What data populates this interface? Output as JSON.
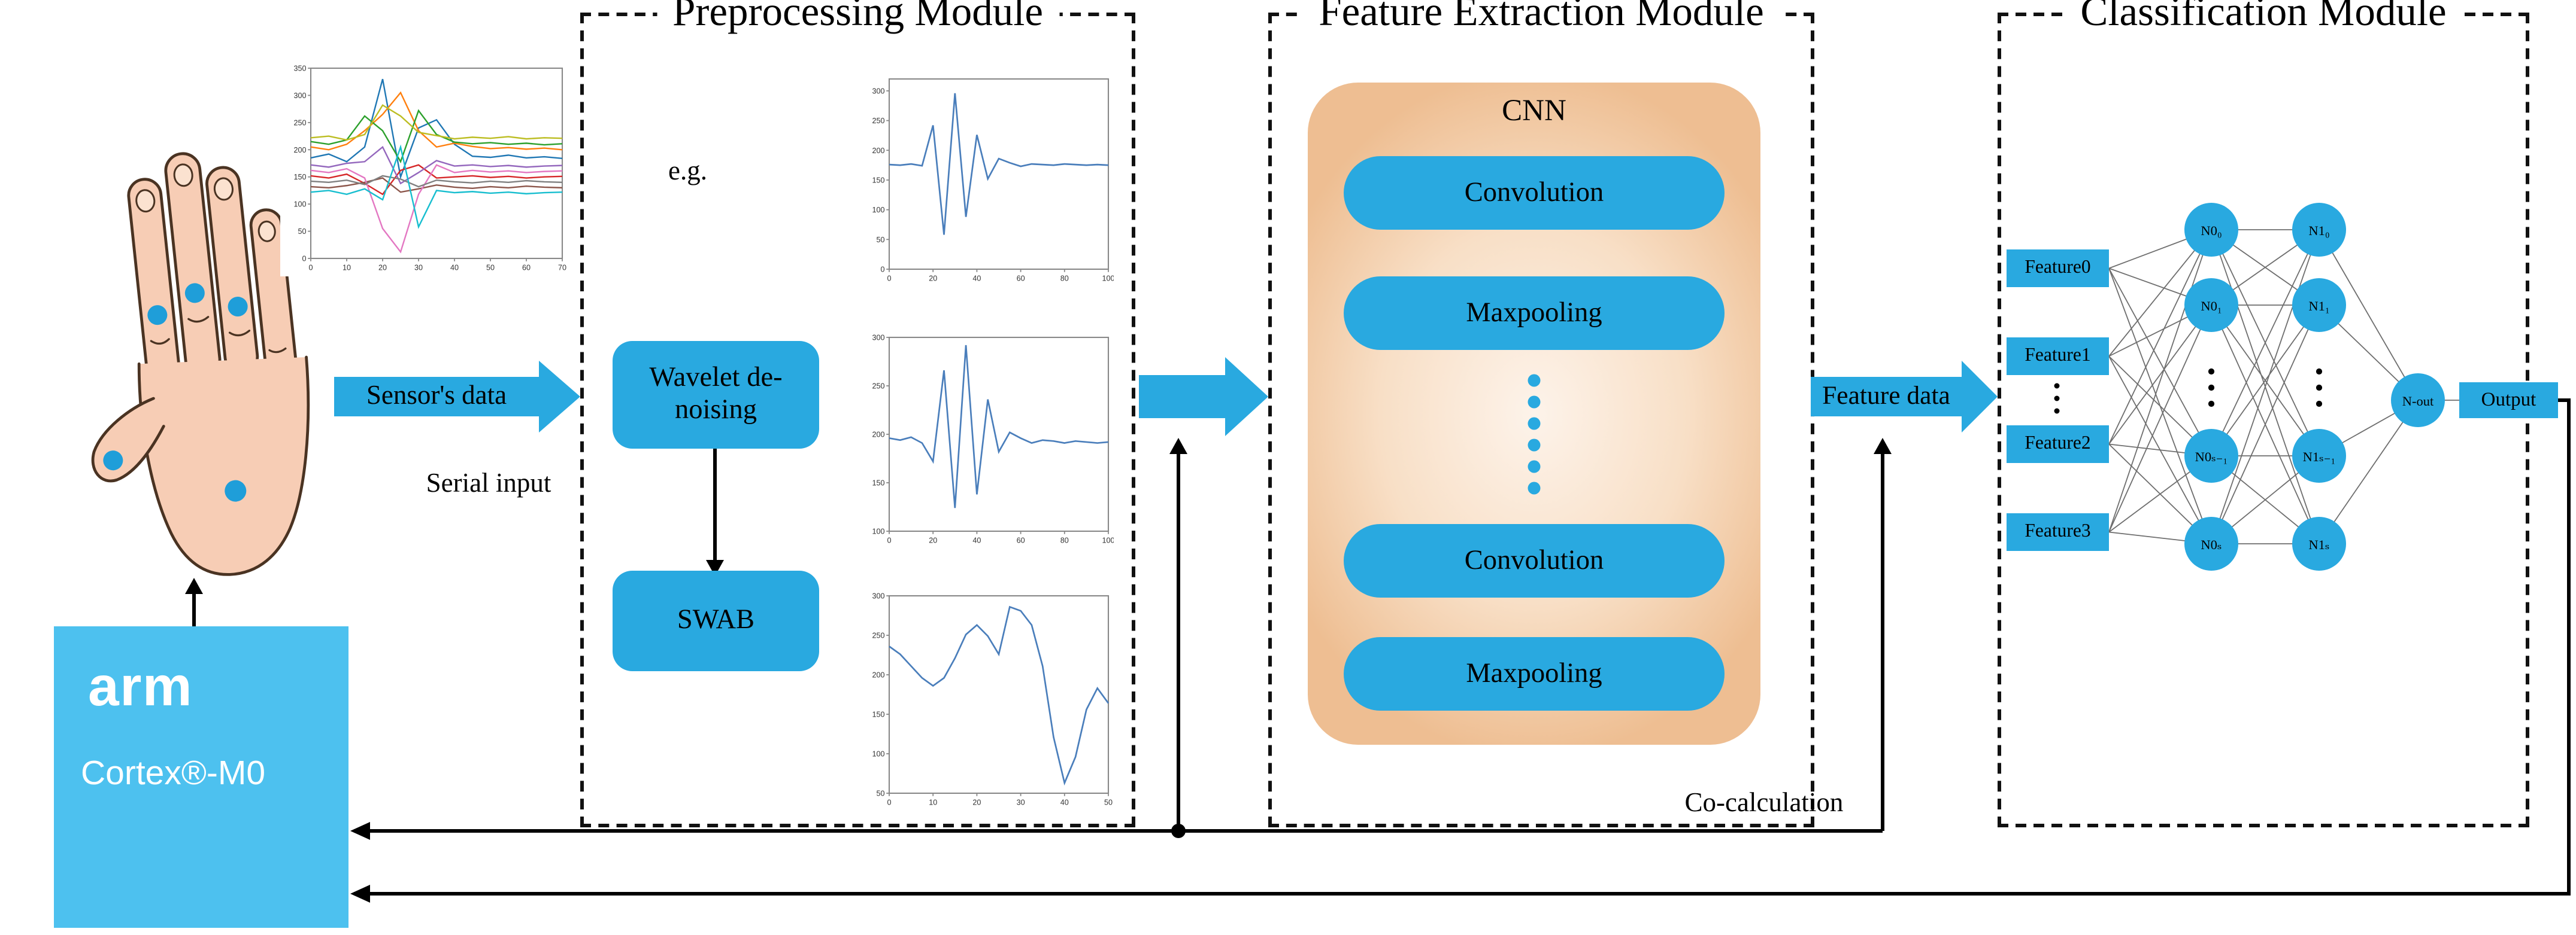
{
  "modules": {
    "preprocessing": {
      "title": "Preprocessing Module",
      "eg_label": "e.g.",
      "wavelet": "Wavelet de-noising",
      "swab": "SWAB"
    },
    "feature_extraction": {
      "title": "Feature Extraction Module",
      "cnn_title": "CNN",
      "layers": [
        "Convolution",
        "Maxpooling",
        "Convolution",
        "Maxpooling"
      ]
    },
    "classification": {
      "title": "Classification Module",
      "inputs": [
        "Feature0",
        "Feature1",
        "Feature2",
        "Feature3"
      ],
      "hidden1": [
        "N0₀",
        "N0₁",
        "N0ₛ₋₁",
        "N0ₛ"
      ],
      "hidden2": [
        "N1₀",
        "N1₁",
        "N1ₛ₋₁",
        "N1ₛ"
      ],
      "output_node": "N-out",
      "output_label": "Output"
    }
  },
  "flow_labels": {
    "sensors_data": "Sensor's data",
    "serial_input": "Serial input",
    "feature_data": "Feature data",
    "co_calculation": "Co-calculation"
  },
  "mcu": {
    "brand": "arm",
    "model": "Cortex®-M0"
  },
  "colors": {
    "accent_blue": "#29A9E0",
    "mcu_blue": "#4DC1EF",
    "panel_orange": "#EEBE92"
  },
  "chart_data": [
    {
      "id": "raw",
      "type": "line",
      "title": "",
      "xlim": [
        0,
        70
      ],
      "ylim": [
        0,
        350
      ],
      "xticks": [
        0,
        10,
        20,
        30,
        40,
        50,
        60,
        70
      ],
      "yticks": [
        0,
        50,
        100,
        150,
        200,
        250,
        300,
        350
      ],
      "x": [
        0,
        5,
        10,
        15,
        20,
        25,
        30,
        35,
        40,
        45,
        50,
        55,
        60,
        65,
        70
      ],
      "series": [
        {
          "color": "#1f77b4",
          "values": [
            185,
            192,
            178,
            205,
            330,
            150,
            240,
            255,
            210,
            188,
            186,
            190,
            185,
            187,
            184
          ]
        },
        {
          "color": "#ff7f0e",
          "values": [
            205,
            200,
            210,
            235,
            265,
            305,
            235,
            205,
            212,
            206,
            202,
            204,
            201,
            203,
            200
          ]
        },
        {
          "color": "#2ca02c",
          "values": [
            215,
            210,
            218,
            262,
            235,
            178,
            272,
            228,
            214,
            211,
            213,
            210,
            212,
            209,
            211
          ]
        },
        {
          "color": "#d62728",
          "values": [
            152,
            148,
            155,
            138,
            118,
            162,
            172,
            148,
            150,
            152,
            149,
            151,
            148,
            150,
            151
          ]
        },
        {
          "color": "#9467bd",
          "values": [
            172,
            168,
            175,
            178,
            205,
            138,
            158,
            180,
            170,
            172,
            169,
            171,
            168,
            170,
            171
          ]
        },
        {
          "color": "#8c564b",
          "values": [
            132,
            130,
            134,
            140,
            148,
            122,
            128,
            135,
            131,
            129,
            132,
            130,
            133,
            131,
            130
          ]
        },
        {
          "color": "#e377c2",
          "values": [
            162,
            158,
            165,
            148,
            55,
            12,
            118,
            172,
            158,
            162,
            159,
            161,
            158,
            160,
            161
          ]
        },
        {
          "color": "#7f7f7f",
          "values": [
            142,
            140,
            144,
            136,
            152,
            146,
            132,
            144,
            141,
            139,
            142,
            140,
            143,
            141,
            140
          ]
        },
        {
          "color": "#bcbd22",
          "values": [
            222,
            225,
            218,
            228,
            282,
            262,
            232,
            226,
            220,
            223,
            221,
            224,
            220,
            222,
            221
          ]
        },
        {
          "color": "#17becf",
          "values": [
            122,
            125,
            118,
            128,
            108,
            205,
            58,
            125,
            121,
            123,
            120,
            122,
            119,
            121,
            122
          ]
        }
      ]
    },
    {
      "id": "denoised1",
      "type": "line",
      "xlim": [
        0,
        100
      ],
      "ylim": [
        0,
        320
      ],
      "xticks": [
        0,
        20,
        40,
        60,
        80,
        100
      ],
      "yticks": [
        0,
        50,
        100,
        150,
        200,
        250,
        300
      ],
      "x": [
        0,
        5,
        10,
        15,
        20,
        25,
        30,
        35,
        40,
        45,
        50,
        55,
        60,
        65,
        70,
        75,
        80,
        85,
        90,
        95,
        100
      ],
      "series": [
        {
          "color": "#4a7ebb",
          "values": [
            176,
            175,
            177,
            174,
            242,
            58,
            296,
            88,
            226,
            152,
            186,
            179,
            173,
            177,
            176,
            175,
            177,
            176,
            175,
            176,
            175
          ]
        }
      ]
    },
    {
      "id": "denoised2",
      "type": "line",
      "xlim": [
        0,
        100
      ],
      "ylim": [
        100,
        300
      ],
      "xticks": [
        0,
        20,
        40,
        60,
        80,
        100
      ],
      "yticks": [
        100,
        150,
        200,
        250,
        300
      ],
      "x": [
        0,
        5,
        10,
        15,
        20,
        25,
        30,
        35,
        40,
        45,
        50,
        55,
        60,
        65,
        70,
        75,
        80,
        85,
        90,
        95,
        100
      ],
      "series": [
        {
          "color": "#4a7ebb",
          "values": [
            196,
            194,
            197,
            191,
            172,
            266,
            124,
            292,
            138,
            236,
            182,
            202,
            196,
            191,
            194,
            193,
            191,
            193,
            192,
            191,
            192
          ]
        }
      ]
    },
    {
      "id": "swab",
      "type": "line",
      "xlim": [
        0,
        50
      ],
      "ylim": [
        50,
        300
      ],
      "xticks": [
        0,
        10,
        20,
        30,
        40,
        50
      ],
      "yticks": [
        50,
        100,
        150,
        200,
        250,
        300
      ],
      "x": [
        0,
        2.5,
        5,
        7.5,
        10,
        12.5,
        15,
        17.5,
        20,
        22.5,
        25,
        27.5,
        30,
        32.5,
        35,
        37.5,
        40,
        42.5,
        45,
        47.5,
        50
      ],
      "series": [
        {
          "color": "#4a7ebb",
          "values": [
            236,
            226,
            211,
            196,
            186,
            196,
            221,
            251,
            263,
            249,
            226,
            286,
            281,
            263,
            211,
            121,
            63,
            96,
            156,
            183,
            164
          ]
        }
      ]
    }
  ]
}
